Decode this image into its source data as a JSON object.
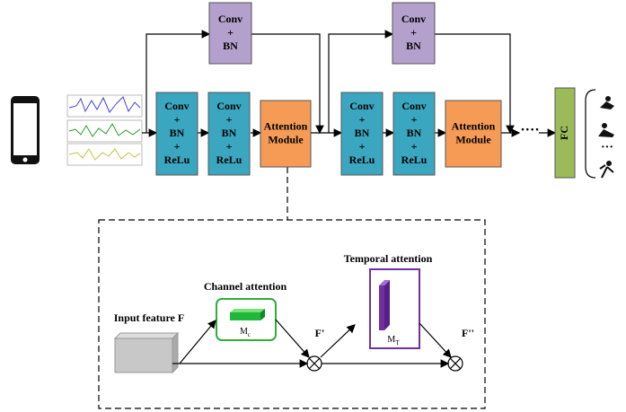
{
  "top_blocks": [
    {
      "lines": [
        "Conv",
        "+",
        "BN"
      ]
    },
    {
      "lines": [
        "Conv",
        "+",
        "BN"
      ]
    }
  ],
  "main_blocks": [
    {
      "lines": [
        "Conv",
        "+",
        "BN",
        "+",
        "ReLu"
      ]
    },
    {
      "lines": [
        "Conv",
        "+",
        "BN",
        "+",
        "ReLu"
      ]
    },
    {
      "lines": [
        "Conv",
        "+",
        "BN",
        "+",
        "ReLu"
      ]
    },
    {
      "lines": [
        "Conv",
        "+",
        "BN",
        "+",
        "ReLu"
      ]
    }
  ],
  "attention_blocks": [
    {
      "lines": [
        "Attention",
        "Module"
      ]
    },
    {
      "lines": [
        "Attention",
        "Module"
      ]
    }
  ],
  "dots": "····",
  "fc": "FC",
  "output_dots": "···",
  "detail": {
    "input_label": "Input feature F",
    "channel_label": "Channel attention",
    "temporal_label": "Temporal attention",
    "mc": {
      "base": "M",
      "sub": "c"
    },
    "mt": {
      "base": "M",
      "sub": "T"
    },
    "f1": "F'",
    "f2": "F''"
  }
}
